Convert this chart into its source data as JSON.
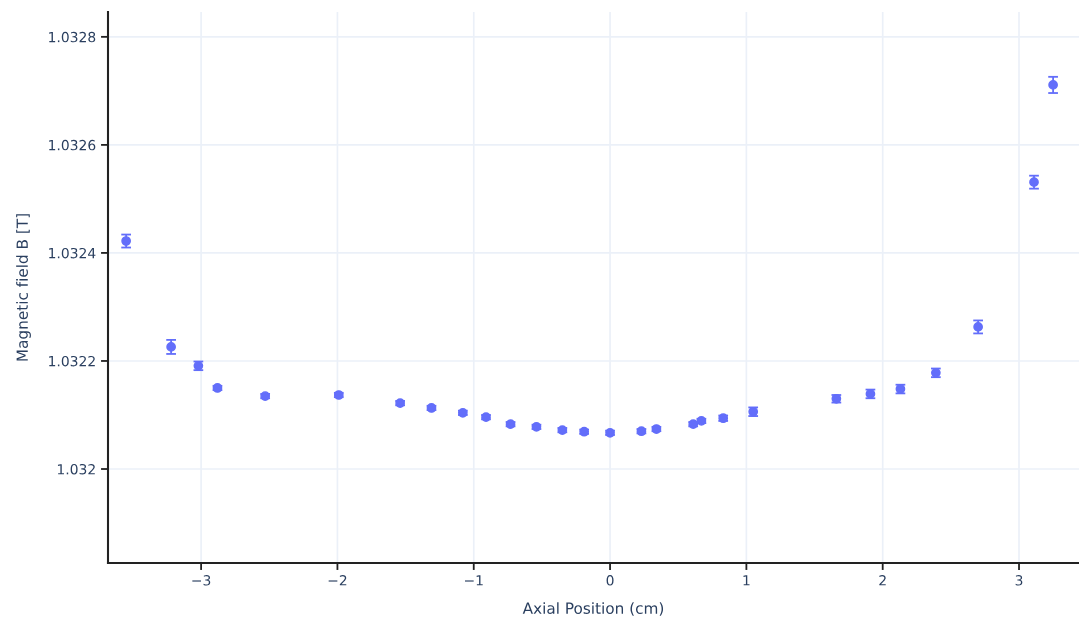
{
  "chart_data": {
    "type": "scatter",
    "xlabel": "Axial Position (cm)",
    "ylabel": "Magnetic field B [T]",
    "x": [
      -3.55,
      -3.22,
      -3.02,
      -2.88,
      -2.53,
      -1.99,
      -1.54,
      -1.31,
      -1.08,
      -0.91,
      -0.73,
      -0.54,
      -0.35,
      -0.19,
      0,
      0.23,
      0.34,
      0.61,
      0.67,
      0.83,
      1.05,
      1.66,
      1.91,
      2.13,
      2.39,
      2.7,
      3.11,
      3.25
    ],
    "series": [
      {
        "color": "#636efa",
        "values": [
          1.032422,
          1.032226,
          1.032191,
          1.03215,
          1.032135,
          1.032137,
          1.032122,
          1.032113,
          1.032104,
          1.032096,
          1.032083,
          1.032078,
          1.032072,
          1.032069,
          1.032067,
          1.03207,
          1.032074,
          1.032083,
          1.032089,
          1.032094,
          1.032106,
          1.03213,
          1.032139,
          1.032148,
          1.032178,
          1.032263,
          1.032531,
          1.032711
        ],
        "errors": [
          1.2e-05,
          1.3e-05,
          8e-06,
          4e-06,
          4e-06,
          4e-06,
          4e-06,
          4e-06,
          4e-06,
          4e-06,
          4e-06,
          4e-06,
          4e-06,
          4e-06,
          4e-06,
          4e-06,
          4e-06,
          4e-06,
          4e-06,
          5e-06,
          8e-06,
          7e-06,
          8e-06,
          8e-06,
          8e-06,
          1.2e-05,
          1.2e-05,
          1.5e-05
        ]
      }
    ],
    "marker": "circle",
    "grid": true,
    "xlim": [
      -3.683,
      3.44
    ],
    "ylim": [
      1.031826,
      1.032846
    ],
    "xticks": [
      {
        "value": -3,
        "label": "−3"
      },
      {
        "value": -2,
        "label": "−2"
      },
      {
        "value": -1,
        "label": "−1"
      },
      0,
      1,
      2,
      3
    ],
    "yticks": [
      1.032,
      1.0322,
      1.0324,
      1.0326,
      1.0328
    ]
  }
}
